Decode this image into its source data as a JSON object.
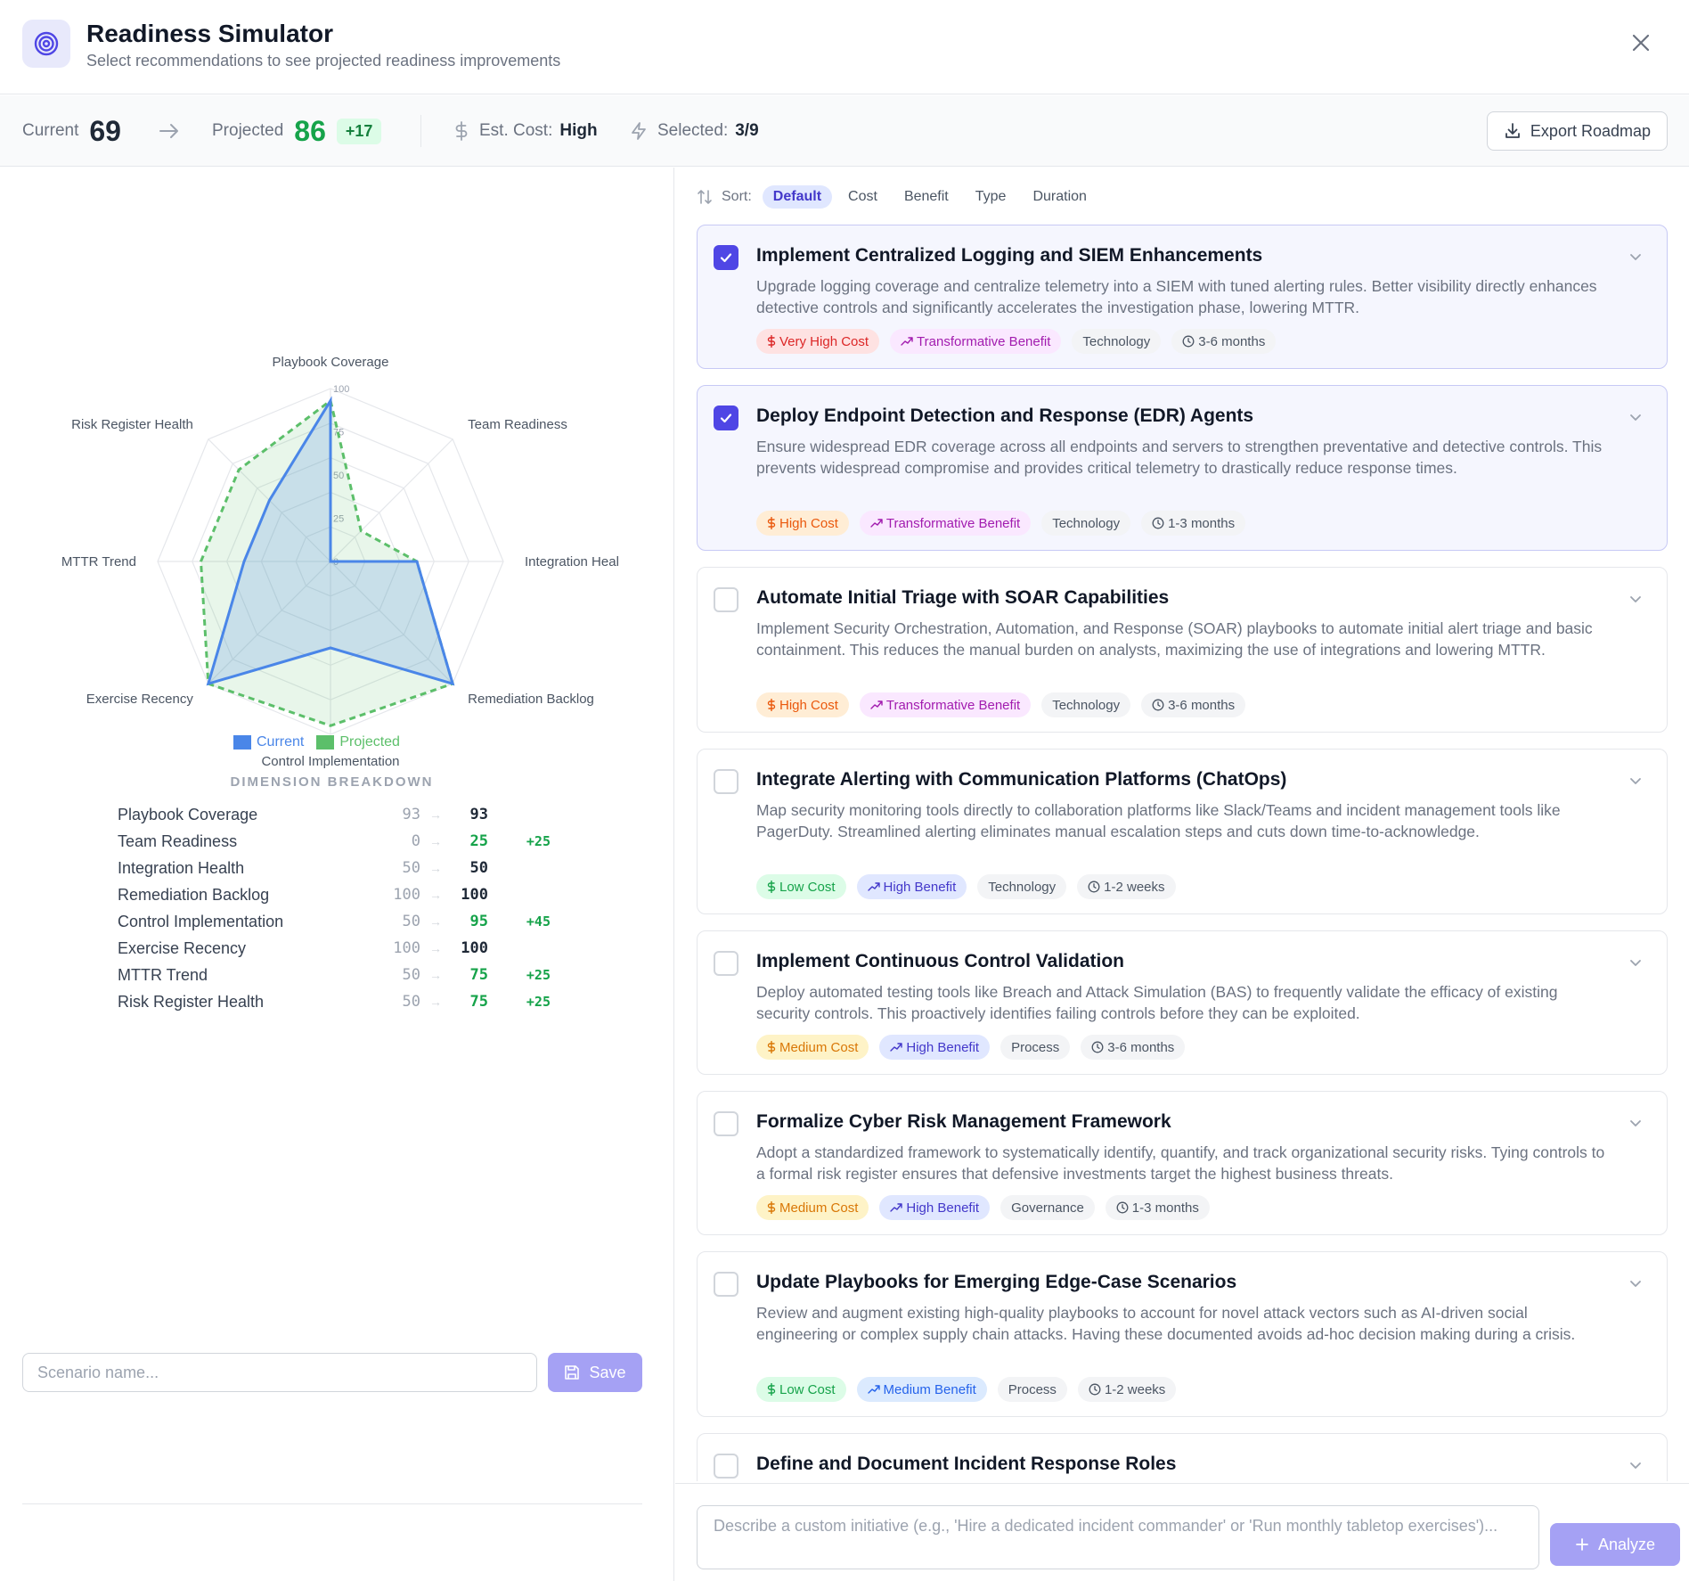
{
  "header": {
    "title": "Readiness Simulator",
    "subtitle": "Select recommendations to see projected readiness improvements"
  },
  "stats": {
    "current_label": "Current",
    "current_value": "69",
    "projected_label": "Projected",
    "projected_value": "86",
    "projected_delta": "+17",
    "cost_label": "Est. Cost:",
    "cost_value": "High",
    "selected_label": "Selected:",
    "selected_value": "3/9",
    "export_label": "Export Roadmap"
  },
  "chart_data": {
    "type": "radar",
    "axes": [
      "Playbook Coverage",
      "Team Readiness",
      "Integration Heal",
      "Remediation Backlog",
      "Control Implementation",
      "Exercise Recency",
      "MTTR Trend",
      "Risk Register Health"
    ],
    "rlim": [
      0,
      100
    ],
    "ticks": [
      "0",
      "25",
      "50",
      "75",
      "100"
    ],
    "series": [
      {
        "name": "Current",
        "values": [
          93,
          0,
          50,
          100,
          50,
          100,
          50,
          50
        ],
        "color": "#4a86e8"
      },
      {
        "name": "Projected",
        "values": [
          93,
          25,
          50,
          100,
          95,
          100,
          75,
          75
        ],
        "color": "#5cbf6a"
      }
    ],
    "legend_position": "bottom"
  },
  "breakdown": {
    "title": "DIMENSION BREAKDOWN",
    "rows": [
      {
        "name": "Playbook Coverage",
        "current": "93",
        "projected": "93",
        "delta": ""
      },
      {
        "name": "Team Readiness",
        "current": "0",
        "projected": "25",
        "delta": "+25"
      },
      {
        "name": "Integration Health",
        "current": "50",
        "projected": "50",
        "delta": ""
      },
      {
        "name": "Remediation Backlog",
        "current": "100",
        "projected": "100",
        "delta": ""
      },
      {
        "name": "Control Implementation",
        "current": "50",
        "projected": "95",
        "delta": "+45"
      },
      {
        "name": "Exercise Recency",
        "current": "100",
        "projected": "100",
        "delta": ""
      },
      {
        "name": "MTTR Trend",
        "current": "50",
        "projected": "75",
        "delta": "+25"
      },
      {
        "name": "Risk Register Health",
        "current": "50",
        "projected": "75",
        "delta": "+25"
      }
    ]
  },
  "scenario": {
    "placeholder": "Scenario name...",
    "save_label": "Save"
  },
  "sort": {
    "label": "Sort:",
    "options": [
      "Default",
      "Cost",
      "Benefit",
      "Type",
      "Duration"
    ]
  },
  "recommendations": [
    {
      "title": "Implement Centralized Logging and SIEM Enhancements",
      "desc": "Upgrade logging coverage and centralize telemetry into a SIEM with tuned alerting rules. Better visibility directly enhances detective controls and significantly accelerates the investigation phase, lowering MTTR.",
      "cost": "Very High Cost",
      "benefit": "Transformative Benefit",
      "type": "Technology",
      "duration": "3-6 months",
      "selected": true
    },
    {
      "title": "Deploy Endpoint Detection and Response (EDR) Agents",
      "desc": "Ensure widespread EDR coverage across all endpoints and servers to strengthen preventative and detective controls. This prevents widespread compromise and provides critical telemetry to drastically reduce response times.",
      "cost": "High Cost",
      "benefit": "Transformative Benefit",
      "type": "Technology",
      "duration": "1-3 months",
      "selected": true
    },
    {
      "title": "Automate Initial Triage with SOAR Capabilities",
      "desc": "Implement Security Orchestration, Automation, and Response (SOAR) playbooks to automate initial alert triage and basic containment. This reduces the manual burden on analysts, maximizing the use of integrations and lowering MTTR.",
      "cost": "High Cost",
      "benefit": "Transformative Benefit",
      "type": "Technology",
      "duration": "3-6 months",
      "selected": false
    },
    {
      "title": "Integrate Alerting with Communication Platforms (ChatOps)",
      "desc": "Map security monitoring tools directly to collaboration platforms like Slack/Teams and incident management tools like PagerDuty. Streamlined alerting eliminates manual escalation steps and cuts down time-to-acknowledge.",
      "cost": "Low Cost",
      "benefit": "High Benefit",
      "type": "Technology",
      "duration": "1-2 weeks",
      "selected": false
    },
    {
      "title": "Implement Continuous Control Validation",
      "desc": "Deploy automated testing tools like Breach and Attack Simulation (BAS) to frequently validate the efficacy of existing security controls. This proactively identifies failing controls before they can be exploited.",
      "cost": "Medium Cost",
      "benefit": "High Benefit",
      "type": "Process",
      "duration": "3-6 months",
      "selected": false
    },
    {
      "title": "Formalize Cyber Risk Management Framework",
      "desc": "Adopt a standardized framework to systematically identify, quantify, and track organizational security risks. Tying controls to a formal risk register ensures that defensive investments target the highest business threats.",
      "cost": "Medium Cost",
      "benefit": "High Benefit",
      "type": "Governance",
      "duration": "1-3 months",
      "selected": false
    },
    {
      "title": "Update Playbooks for Emerging Edge-Case Scenarios",
      "desc": "Review and augment existing high-quality playbooks to account for novel attack vectors such as AI-driven social engineering or complex supply chain attacks. Having these documented avoids ad-hoc decision making during a crisis.",
      "cost": "Low Cost",
      "benefit": "Medium Benefit",
      "type": "Process",
      "duration": "1-2 weeks",
      "selected": false
    },
    {
      "title": "Define and Document Incident Response Roles",
      "desc": "",
      "cost": "",
      "benefit": "",
      "type": "",
      "duration": "",
      "selected": false
    }
  ],
  "custom": {
    "placeholder": "Describe a custom initiative (e.g., 'Hire a dedicated incident commander' or 'Run monthly tabletop exercises')...",
    "analyze_label": "Analyze"
  },
  "icons": {
    "logo": "target-icon",
    "close": "close-icon",
    "export": "download-icon",
    "cost": "dollar-icon",
    "selected": "lightning-icon",
    "sort": "sort-icon",
    "save": "save-icon",
    "analyze": "plus-icon"
  }
}
